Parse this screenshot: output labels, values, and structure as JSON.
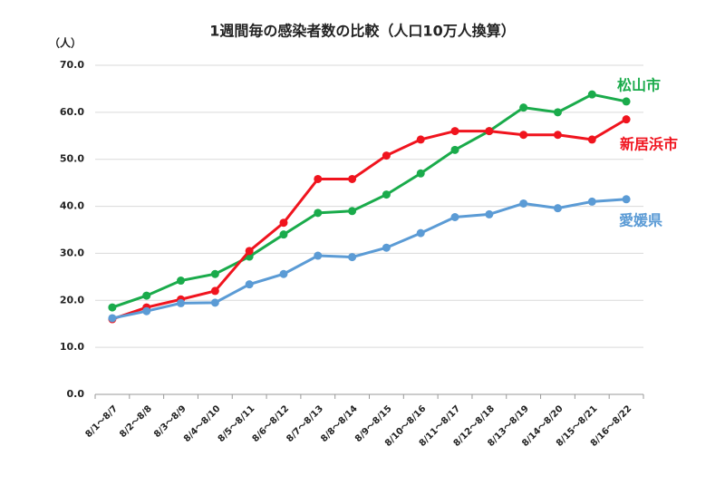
{
  "chart_data": {
    "type": "line",
    "title": "1週間毎の感染者数の比較（人口10万人換算）",
    "y_label": "（人）",
    "categories": [
      "8/1～8/7",
      "8/2～8/8",
      "8/3～8/9",
      "8/4～8/10",
      "8/5～8/11",
      "8/6～8/12",
      "8/7～8/13",
      "8/8～8/14",
      "8/9～8/15",
      "8/10～8/16",
      "8/11～8/17",
      "8/12～8/18",
      "8/13～8/19",
      "8/14～8/20",
      "8/15～8/21",
      "8/16～8/22"
    ],
    "series": [
      {
        "name": "松山市",
        "color": "#1aab4b",
        "values": [
          18.5,
          21,
          24.2,
          25.6,
          29.3,
          34,
          38.6,
          39,
          42.5,
          47,
          52,
          56,
          61,
          60,
          63.8,
          62.3
        ]
      },
      {
        "name": "新居浜市",
        "color": "#f0141e",
        "values": [
          16,
          18.5,
          20.2,
          22,
          30.5,
          36.5,
          45.8,
          45.8,
          50.8,
          54.2,
          56,
          56,
          55.2,
          55.2,
          54.2,
          58.5
        ]
      },
      {
        "name": "愛媛県",
        "color": "#5b9bd5",
        "values": [
          16.2,
          17.7,
          19.4,
          19.5,
          23.4,
          25.6,
          29.5,
          29.2,
          31.2,
          34.3,
          37.7,
          38.3,
          40.6,
          39.6,
          41,
          41.5
        ]
      }
    ],
    "ylim": [
      0,
      70
    ],
    "yticks": [
      {
        "value": 0,
        "label": "0.0"
      },
      {
        "value": 10,
        "label": "10.0"
      },
      {
        "value": 20,
        "label": "20.0"
      },
      {
        "value": 30,
        "label": "30.0"
      },
      {
        "value": 40,
        "label": "40.0"
      },
      {
        "value": 50,
        "label": "50.0"
      },
      {
        "value": 60,
        "label": "60.0"
      },
      {
        "value": 70,
        "label": "70.0"
      }
    ],
    "grid": true
  }
}
